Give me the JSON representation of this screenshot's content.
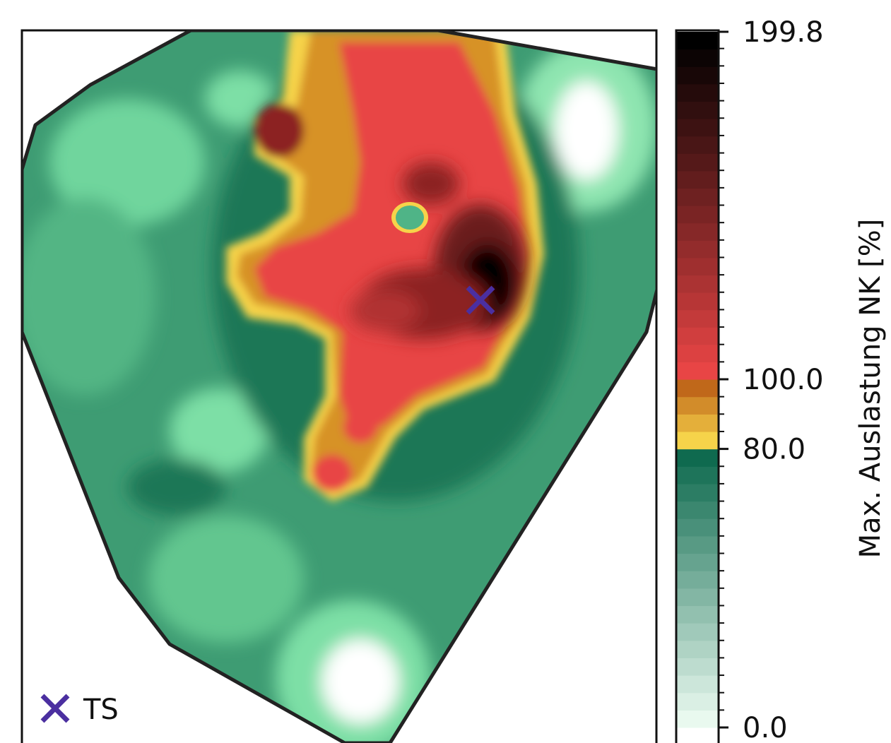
{
  "colorbar": {
    "title": "Max. Auslastung NK [%]",
    "ticks": [
      {
        "value": 199.8,
        "label": "199.8"
      },
      {
        "value": 100.0,
        "label": "100.0"
      },
      {
        "value": 80.0,
        "label": "80.0"
      },
      {
        "value": 0.0,
        "label": "0.0"
      }
    ],
    "min": 0.0,
    "max": 199.8,
    "bands": [
      {
        "from": 0,
        "to": 80,
        "colors": [
          "#e9f9ef",
          "#0f6a4f"
        ]
      },
      {
        "from": 80,
        "to": 100,
        "colors": [
          "#f6d34a",
          "#c0681a"
        ]
      },
      {
        "from": 100,
        "to": 199.8,
        "colors": [
          "#e84545",
          "#000000"
        ]
      }
    ]
  },
  "legend": {
    "marker": "x-marker-icon",
    "label": "TS",
    "marker_color": "#4b2fa0"
  },
  "colors": {
    "boundary": "#222222",
    "green_mid": "#3c9a72",
    "red": "#e84545",
    "yellow": "#f6d34a"
  }
}
